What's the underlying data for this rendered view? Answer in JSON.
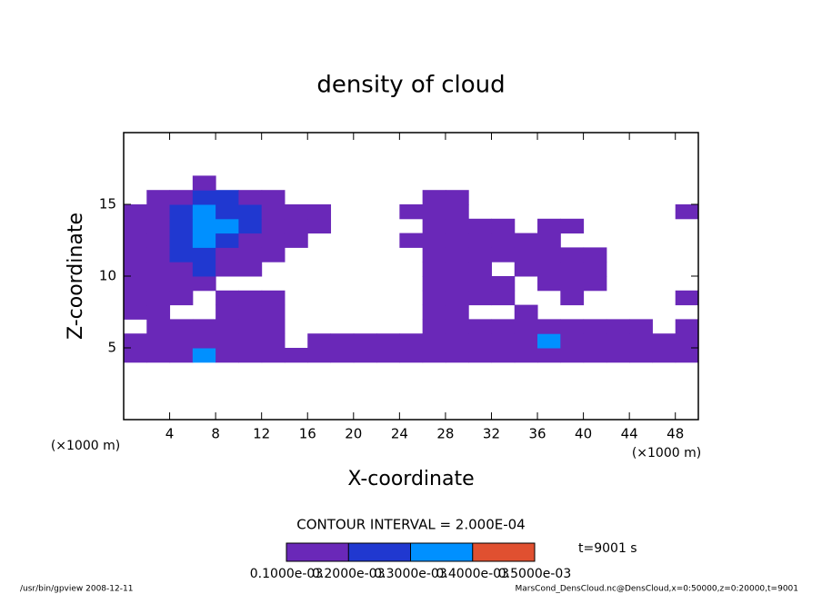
{
  "chart_data": {
    "type": "contour",
    "title": "density of cloud",
    "x_label": "X-coordinate",
    "y_label": "Z-coordinate",
    "x_unit": "(×1000 m)",
    "y_unit": "(×1000 m)",
    "xlim": [
      0,
      50
    ],
    "ylim": [
      0,
      20
    ],
    "xticks": [
      4,
      8,
      12,
      16,
      20,
      24,
      28,
      32,
      36,
      40,
      44,
      48
    ],
    "yticks": [
      5,
      10,
      15
    ],
    "x": [
      1,
      3,
      5,
      7,
      9,
      11,
      13,
      15,
      17,
      19,
      21,
      23,
      25,
      27,
      29,
      31,
      33,
      35,
      37,
      39,
      41,
      43,
      45,
      47,
      49
    ],
    "y": [
      4.5,
      5.5,
      6.5,
      7.5,
      8.5,
      9.5,
      10.5,
      11.5,
      12.5,
      13.5,
      14.5,
      15.5,
      16.5
    ],
    "values": [
      [
        0.00015,
        0.00015,
        0.00015,
        0.00035,
        0.00015,
        0.00015,
        0.00015,
        0.00015,
        0.00015,
        0.00015,
        0.00015,
        0.00015,
        0.00015,
        0.00015,
        0.00015,
        0.00015,
        0.00015,
        0.00015,
        0.00015,
        0.00015,
        0.00015,
        0.00015,
        0.00015,
        0.00015,
        0.00015
      ],
      [
        0.00015,
        0.00015,
        0.00015,
        0.00015,
        0.00015,
        0.00015,
        0.00015,
        0,
        0.00015,
        0.00015,
        0.00015,
        0.00015,
        0.00015,
        0.00015,
        0.00015,
        0.00015,
        0.00015,
        0.00015,
        0.00035,
        0.00015,
        0.00015,
        0.00015,
        0.00015,
        0.00015,
        0.00015
      ],
      [
        0,
        0.00015,
        0.00015,
        0.00015,
        0.00015,
        0.00015,
        0.00015,
        0,
        0,
        0,
        0,
        0,
        0,
        0.00015,
        0.00015,
        0.00015,
        0.00015,
        0.00015,
        0.00015,
        0.00015,
        0.00015,
        0.00015,
        0.00015,
        0,
        0.00015
      ],
      [
        0.00015,
        0.00015,
        0,
        0,
        0.00015,
        0.00015,
        0.00015,
        0,
        0,
        0,
        0,
        0,
        0,
        0.00015,
        0.00015,
        0,
        0,
        0.00015,
        0,
        0,
        0,
        0,
        0,
        0,
        0
      ],
      [
        0.00015,
        0.00015,
        0.00015,
        0,
        0.00015,
        0.00015,
        0.00015,
        0,
        0,
        0,
        0,
        0,
        0,
        0.00015,
        0.00015,
        0.00015,
        0.00015,
        0,
        0,
        0.00015,
        0,
        0,
        0,
        0,
        0.00015
      ],
      [
        0.00015,
        0.00015,
        0.00015,
        0.00015,
        0,
        0,
        0,
        0,
        0,
        0,
        0,
        0,
        0,
        0.00015,
        0.00015,
        0.00015,
        0.00015,
        0,
        0.00015,
        0.00015,
        0.00015,
        0,
        0,
        0,
        0
      ],
      [
        0.00015,
        0.00015,
        0.00015,
        0.00025,
        0.00015,
        0.00015,
        0,
        0,
        0,
        0,
        0,
        0,
        0,
        0.00015,
        0.00015,
        0.00015,
        0,
        0.00015,
        0.00015,
        0.00015,
        0.00015,
        0,
        0,
        0,
        0
      ],
      [
        0.00015,
        0.00015,
        0.00025,
        0.00025,
        0.00015,
        0.00015,
        0.00015,
        0,
        0,
        0,
        0,
        0,
        0,
        0.00015,
        0.00015,
        0.00015,
        0.00015,
        0.00015,
        0.00015,
        0.00015,
        0.00015,
        0,
        0,
        0,
        0
      ],
      [
        0.00015,
        0.00015,
        0.00025,
        0.00035,
        0.00025,
        0.00015,
        0.00015,
        0.00015,
        0,
        0,
        0,
        0,
        0.00015,
        0.00015,
        0.00015,
        0.00015,
        0.00015,
        0.00015,
        0.00015,
        0,
        0,
        0,
        0,
        0,
        0
      ],
      [
        0.00015,
        0.00015,
        0.00025,
        0.00035,
        0.00035,
        0.00025,
        0.00015,
        0.00015,
        0.00015,
        0,
        0,
        0,
        0,
        0.00015,
        0.00015,
        0.00015,
        0.00015,
        0,
        0.00015,
        0.00015,
        0,
        0,
        0,
        0,
        0
      ],
      [
        0.00015,
        0.00015,
        0.00025,
        0.00035,
        0.00025,
        0.00025,
        0.00015,
        0.00015,
        0.00015,
        0,
        0,
        0,
        0.00015,
        0.00015,
        0.00015,
        0,
        0,
        0,
        0,
        0,
        0,
        0,
        0,
        0,
        0.00015
      ],
      [
        0,
        0.00015,
        0.00015,
        0.00025,
        0.00025,
        0.00015,
        0.00015,
        0,
        0,
        0,
        0,
        0,
        0,
        0.00015,
        0.00015,
        0,
        0,
        0,
        0,
        0,
        0,
        0,
        0,
        0,
        0
      ],
      [
        0,
        0,
        0,
        0.00015,
        0,
        0,
        0,
        0,
        0,
        0,
        0,
        0,
        0,
        0,
        0,
        0,
        0,
        0,
        0,
        0,
        0,
        0,
        0,
        0,
        0
      ]
    ],
    "contour_interval_text": "CONTOUR INTERVAL = 2.000E-04",
    "time_text": "t=9001 s",
    "colorbar_ticks": [
      {
        "value": 0.0001,
        "label": "0.1000e-03"
      },
      {
        "value": 0.0002,
        "label": "0.2000e-03"
      },
      {
        "value": 0.0003,
        "label": "0.3000e-03"
      },
      {
        "value": 0.0004,
        "label": "0.4000e-03"
      },
      {
        "value": 0.0005,
        "label": "0.5000e-03"
      }
    ],
    "colors": [
      "#6a28b8",
      "#2038d0",
      "#0090ff",
      "#e05030"
    ],
    "footer_left": "/usr/bin/gpview  2008-12-11",
    "footer_right": "MarsCond_DensCloud.nc@DensCloud,x=0:50000,z=0:20000,t=9001"
  }
}
